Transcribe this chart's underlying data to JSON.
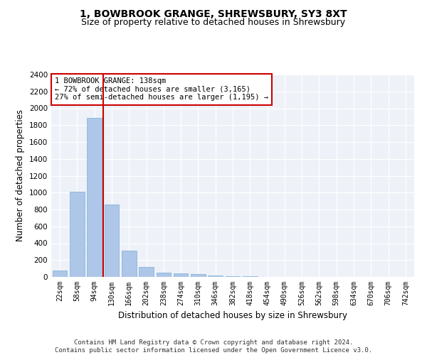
{
  "title1": "1, BOWBROOK GRANGE, SHREWSBURY, SY3 8XT",
  "title2": "Size of property relative to detached houses in Shrewsbury",
  "xlabel": "Distribution of detached houses by size in Shrewsbury",
  "ylabel": "Number of detached properties",
  "bar_labels": [
    "22sqm",
    "58sqm",
    "94sqm",
    "130sqm",
    "166sqm",
    "202sqm",
    "238sqm",
    "274sqm",
    "310sqm",
    "346sqm",
    "382sqm",
    "418sqm",
    "454sqm",
    "490sqm",
    "526sqm",
    "562sqm",
    "598sqm",
    "634sqm",
    "670sqm",
    "706sqm",
    "742sqm"
  ],
  "bar_values": [
    80,
    1010,
    1890,
    860,
    315,
    115,
    50,
    40,
    30,
    20,
    10,
    5,
    2,
    1,
    1,
    0,
    0,
    0,
    0,
    0,
    0
  ],
  "bar_color": "#aec6e8",
  "bar_edge_color": "#7bafd4",
  "vline_pos": 2.5,
  "vline_color": "#cc0000",
  "annotation_text": "1 BOWBROOK GRANGE: 138sqm\n← 72% of detached houses are smaller (3,165)\n27% of semi-detached houses are larger (1,195) →",
  "annotation_box_color": "#ffffff",
  "annotation_box_edge": "#cc0000",
  "ylim": [
    0,
    2400
  ],
  "yticks": [
    0,
    200,
    400,
    600,
    800,
    1000,
    1200,
    1400,
    1600,
    1800,
    2000,
    2200,
    2400
  ],
  "background_color": "#eef2f8",
  "footer_text": "Contains HM Land Registry data © Crown copyright and database right 2024.\nContains public sector information licensed under the Open Government Licence v3.0.",
  "title1_fontsize": 10,
  "title2_fontsize": 9,
  "xlabel_fontsize": 8.5,
  "ylabel_fontsize": 8.5,
  "footer_fontsize": 6.5
}
